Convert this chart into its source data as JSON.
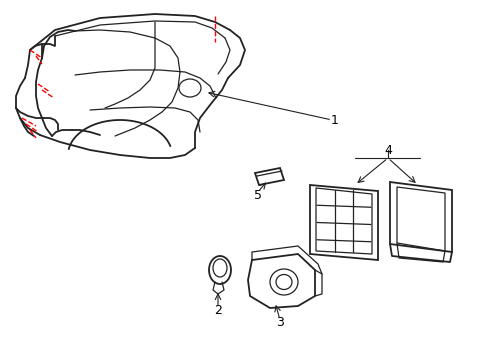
{
  "background_color": "#ffffff",
  "line_color": "#222222",
  "red_dash_color": "#ff0000",
  "label_color": "#000000",
  "fig_width": 4.89,
  "fig_height": 3.6,
  "dpi": 100
}
